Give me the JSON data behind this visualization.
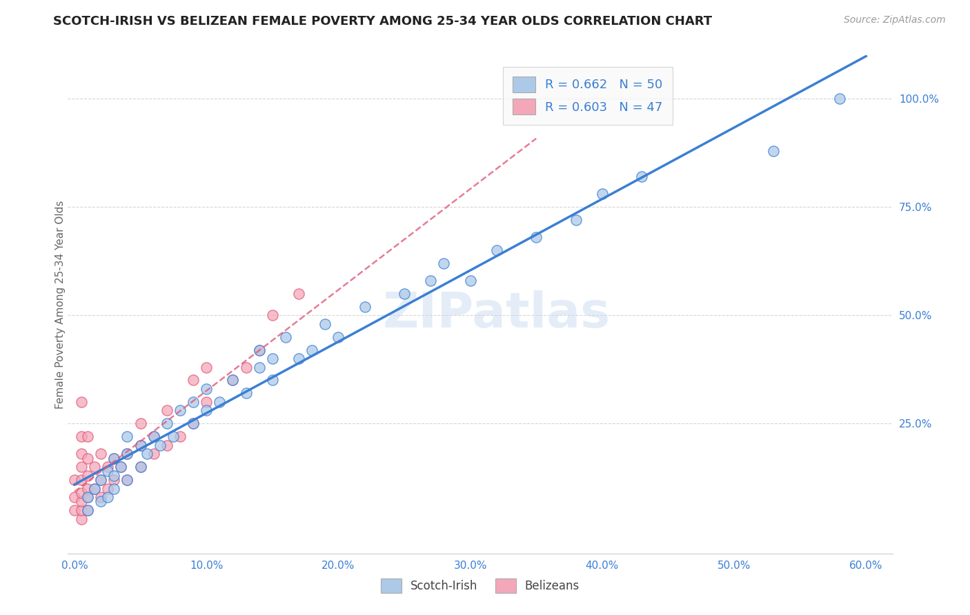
{
  "title": "SCOTCH-IRISH VS BELIZEAN FEMALE POVERTY AMONG 25-34 YEAR OLDS CORRELATION CHART",
  "source": "Source: ZipAtlas.com",
  "ylabel": "Female Poverty Among 25-34 Year Olds",
  "xlim": [
    -0.005,
    0.62
  ],
  "ylim": [
    -0.05,
    1.1
  ],
  "xtick_labels": [
    "0.0%",
    "10.0%",
    "20.0%",
    "30.0%",
    "40.0%",
    "50.0%",
    "60.0%"
  ],
  "xtick_vals": [
    0.0,
    0.1,
    0.2,
    0.3,
    0.4,
    0.5,
    0.6
  ],
  "ytick_labels": [
    "100.0%",
    "75.0%",
    "50.0%",
    "25.0%"
  ],
  "ytick_vals": [
    1.0,
    0.75,
    0.5,
    0.25
  ],
  "watermark": "ZIPatlas",
  "scotch_irish_R": 0.662,
  "scotch_irish_N": 50,
  "belizean_R": 0.603,
  "belizean_N": 47,
  "scotch_irish_color": "#adc9e8",
  "belizean_color": "#f4a7b9",
  "scotch_irish_line_color": "#3a7fd4",
  "belizean_line_color": "#e05a7a",
  "scotch_irish_x": [
    0.01,
    0.01,
    0.015,
    0.02,
    0.02,
    0.025,
    0.025,
    0.03,
    0.03,
    0.03,
    0.035,
    0.04,
    0.04,
    0.04,
    0.05,
    0.05,
    0.055,
    0.06,
    0.065,
    0.07,
    0.075,
    0.08,
    0.09,
    0.09,
    0.1,
    0.1,
    0.11,
    0.12,
    0.13,
    0.14,
    0.14,
    0.15,
    0.15,
    0.16,
    0.17,
    0.18,
    0.19,
    0.2,
    0.22,
    0.25,
    0.27,
    0.28,
    0.3,
    0.32,
    0.35,
    0.38,
    0.4,
    0.43,
    0.53,
    0.58
  ],
  "scotch_irish_y": [
    0.05,
    0.08,
    0.1,
    0.07,
    0.12,
    0.08,
    0.14,
    0.1,
    0.13,
    0.17,
    0.15,
    0.12,
    0.18,
    0.22,
    0.15,
    0.2,
    0.18,
    0.22,
    0.2,
    0.25,
    0.22,
    0.28,
    0.25,
    0.3,
    0.28,
    0.33,
    0.3,
    0.35,
    0.32,
    0.38,
    0.42,
    0.35,
    0.4,
    0.45,
    0.4,
    0.42,
    0.48,
    0.45,
    0.52,
    0.55,
    0.58,
    0.62,
    0.58,
    0.65,
    0.68,
    0.72,
    0.78,
    0.82,
    0.88,
    1.0
  ],
  "belizean_x": [
    0.0,
    0.0,
    0.0,
    0.005,
    0.005,
    0.005,
    0.005,
    0.005,
    0.005,
    0.005,
    0.005,
    0.005,
    0.01,
    0.01,
    0.01,
    0.01,
    0.01,
    0.01,
    0.015,
    0.015,
    0.02,
    0.02,
    0.02,
    0.025,
    0.025,
    0.03,
    0.03,
    0.035,
    0.04,
    0.04,
    0.05,
    0.05,
    0.05,
    0.06,
    0.06,
    0.07,
    0.07,
    0.08,
    0.09,
    0.09,
    0.1,
    0.1,
    0.12,
    0.13,
    0.14,
    0.15,
    0.17
  ],
  "belizean_y": [
    0.05,
    0.08,
    0.12,
    0.03,
    0.05,
    0.07,
    0.09,
    0.12,
    0.15,
    0.18,
    0.22,
    0.3,
    0.05,
    0.08,
    0.1,
    0.13,
    0.17,
    0.22,
    0.1,
    0.15,
    0.08,
    0.12,
    0.18,
    0.1,
    0.15,
    0.12,
    0.17,
    0.15,
    0.12,
    0.18,
    0.15,
    0.2,
    0.25,
    0.18,
    0.22,
    0.2,
    0.28,
    0.22,
    0.25,
    0.35,
    0.3,
    0.38,
    0.35,
    0.38,
    0.42,
    0.5,
    0.55
  ],
  "background_color": "#ffffff",
  "grid_color": "#cccccc"
}
